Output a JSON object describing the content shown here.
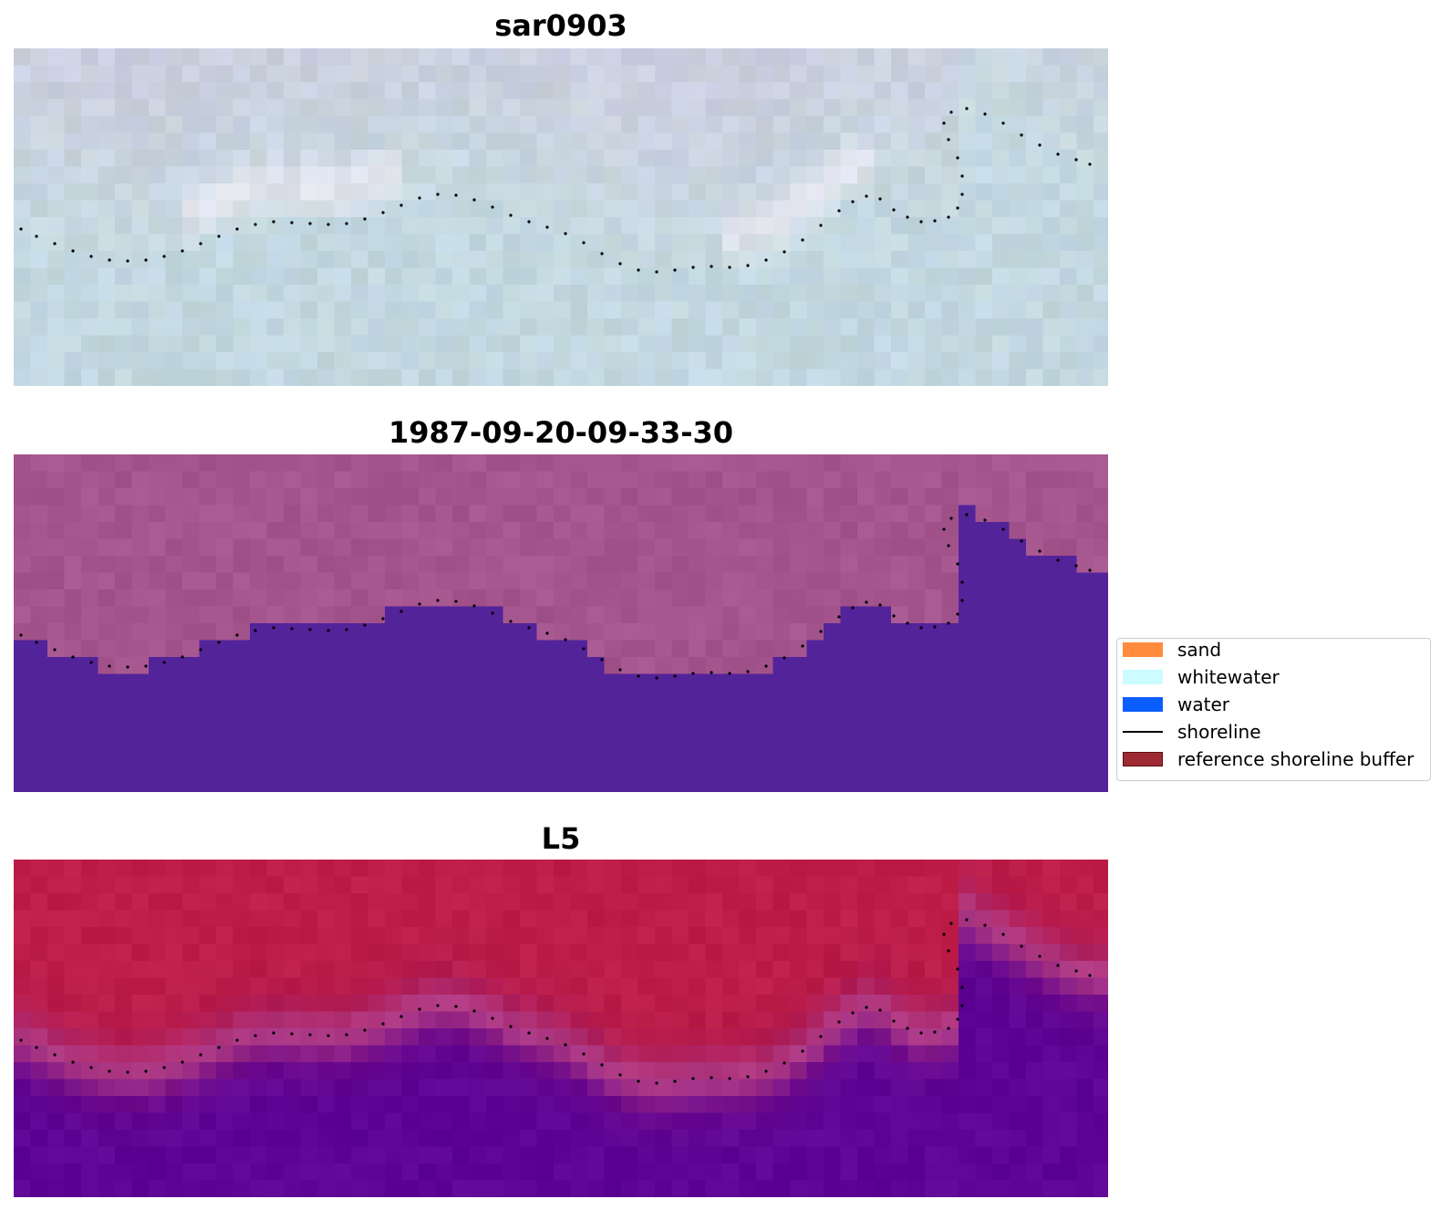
{
  "panels": [
    {
      "title": "sar0903",
      "kind": "rgb"
    },
    {
      "title": "1987-09-20-09-33-30",
      "kind": "classified"
    },
    {
      "title": "L5",
      "kind": "probability"
    }
  ],
  "legend": {
    "items": [
      {
        "label": "sand",
        "color": "#ff8c3c",
        "type": "patch"
      },
      {
        "label": "whitewater",
        "color": "#ccfcff",
        "type": "patch"
      },
      {
        "label": "water",
        "color": "#0a5dff",
        "type": "patch"
      },
      {
        "label": "shoreline",
        "color": "#000000",
        "type": "line"
      },
      {
        "label": "reference shoreline buffer",
        "color": "#9e2b33",
        "type": "patch"
      }
    ]
  },
  "colors": {
    "land_magenta": "#a5558e",
    "water_purple": "#53239a",
    "prob_land_red": "#bd1d47",
    "prob_water_purple": "#5e0596",
    "rgb_base": "#c7d9e0",
    "shoreline_dots": "#000000"
  }
}
